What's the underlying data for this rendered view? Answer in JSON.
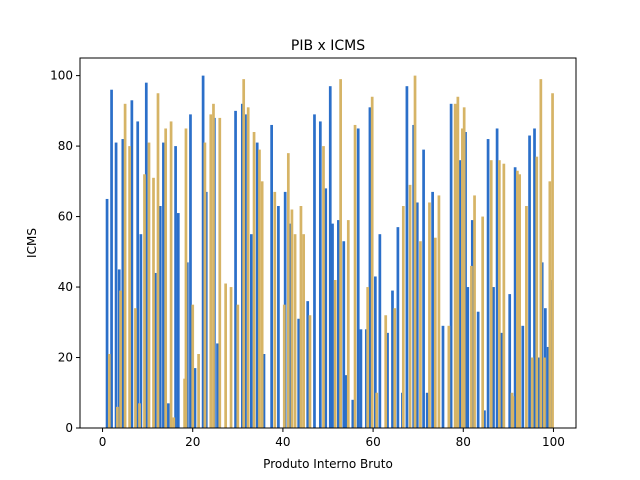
{
  "chart_data": {
    "type": "bar",
    "title": "PIB x ICMS",
    "xlabel": "Produto Interno Bruto",
    "ylabel": "ICMS",
    "xlim": [
      -5,
      105
    ],
    "ylim": [
      0,
      105
    ],
    "xticks": [
      0,
      20,
      40,
      60,
      80,
      100
    ],
    "yticks": [
      0,
      20,
      40,
      60,
      80,
      100
    ],
    "grid": false,
    "colors": {
      "blue": "#2b6fc9",
      "gold": "#d6b466"
    },
    "series": [
      {
        "color": "blue",
        "bar_width": 0.6,
        "points": [
          [
            1,
            65
          ],
          [
            2,
            96
          ],
          [
            3,
            81
          ],
          [
            3.7,
            45
          ],
          [
            4.5,
            82
          ],
          [
            6.5,
            93
          ],
          [
            7.8,
            87
          ],
          [
            8.5,
            55
          ],
          [
            9.7,
            98
          ],
          [
            11.7,
            44
          ],
          [
            12.8,
            63
          ],
          [
            13.5,
            81
          ],
          [
            14.6,
            7
          ],
          [
            16.2,
            80
          ],
          [
            16.8,
            61
          ],
          [
            18.8,
            47
          ],
          [
            19.5,
            89
          ],
          [
            20.5,
            17
          ],
          [
            22.3,
            100
          ],
          [
            23,
            67
          ],
          [
            24.8,
            88
          ],
          [
            25.5,
            24
          ],
          [
            29.5,
            90
          ],
          [
            31,
            92
          ],
          [
            31.7,
            89
          ],
          [
            33,
            55
          ],
          [
            34.3,
            81
          ],
          [
            35.8,
            21
          ],
          [
            37.5,
            86
          ],
          [
            39,
            63
          ],
          [
            40.5,
            67
          ],
          [
            41.5,
            58
          ],
          [
            43.5,
            31
          ],
          [
            45.5,
            36
          ],
          [
            47,
            89
          ],
          [
            48.3,
            87
          ],
          [
            49.5,
            68
          ],
          [
            50.5,
            97
          ],
          [
            51,
            58
          ],
          [
            52.3,
            59
          ],
          [
            53.5,
            53
          ],
          [
            54,
            15
          ],
          [
            55.5,
            8
          ],
          [
            56.7,
            85
          ],
          [
            57.3,
            28
          ],
          [
            58.5,
            28
          ],
          [
            59.3,
            91
          ],
          [
            60.5,
            43
          ],
          [
            61.5,
            55
          ],
          [
            63.2,
            27
          ],
          [
            64.3,
            39
          ],
          [
            65.5,
            57
          ],
          [
            66.5,
            10
          ],
          [
            67.5,
            97
          ],
          [
            69,
            86
          ],
          [
            69.8,
            64
          ],
          [
            71.2,
            79
          ],
          [
            72,
            10
          ],
          [
            73.2,
            67
          ],
          [
            75.5,
            29
          ],
          [
            77.3,
            92
          ],
          [
            78.5,
            44
          ],
          [
            79.3,
            76
          ],
          [
            80.5,
            84
          ],
          [
            81,
            40
          ],
          [
            82,
            59
          ],
          [
            83.3,
            33
          ],
          [
            84.7,
            5
          ],
          [
            85.5,
            82
          ],
          [
            86.7,
            40
          ],
          [
            87.5,
            85
          ],
          [
            88.5,
            27
          ],
          [
            90.3,
            38
          ],
          [
            91.5,
            74
          ],
          [
            93.2,
            29
          ],
          [
            94.7,
            83
          ],
          [
            95.8,
            85
          ],
          [
            96.6,
            20
          ],
          [
            97.5,
            47
          ],
          [
            98.2,
            34
          ],
          [
            98.8,
            23
          ],
          [
            99.5,
            42
          ]
        ]
      },
      {
        "color": "gold",
        "bar_width": 0.6,
        "points": [
          [
            1.5,
            21
          ],
          [
            3.3,
            6
          ],
          [
            4,
            39
          ],
          [
            5,
            92
          ],
          [
            6,
            80
          ],
          [
            7.3,
            34
          ],
          [
            8.2,
            7
          ],
          [
            9.3,
            72
          ],
          [
            10.3,
            81
          ],
          [
            11.3,
            71
          ],
          [
            12.3,
            95
          ],
          [
            14,
            85
          ],
          [
            15.2,
            87
          ],
          [
            15.8,
            3
          ],
          [
            18.2,
            14
          ],
          [
            18.5,
            85
          ],
          [
            20,
            35
          ],
          [
            21.3,
            21
          ],
          [
            22.7,
            81
          ],
          [
            24,
            89
          ],
          [
            24.6,
            92
          ],
          [
            26,
            88
          ],
          [
            27.3,
            41
          ],
          [
            28.5,
            40
          ],
          [
            30,
            35
          ],
          [
            31.3,
            99
          ],
          [
            32.3,
            91
          ],
          [
            33.6,
            84
          ],
          [
            34.8,
            79
          ],
          [
            35.4,
            70
          ],
          [
            38.2,
            67
          ],
          [
            40.3,
            35
          ],
          [
            41.2,
            78
          ],
          [
            42,
            62
          ],
          [
            42.7,
            55
          ],
          [
            44,
            63
          ],
          [
            44.6,
            55
          ],
          [
            46,
            32
          ],
          [
            49,
            80
          ],
          [
            51.6,
            42
          ],
          [
            52.8,
            99
          ],
          [
            54.5,
            59
          ],
          [
            56,
            86
          ],
          [
            58.8,
            40
          ],
          [
            59.8,
            94
          ],
          [
            60.8,
            10
          ],
          [
            62.8,
            32
          ],
          [
            64.8,
            34
          ],
          [
            66.7,
            63
          ],
          [
            68.2,
            69
          ],
          [
            69.3,
            100
          ],
          [
            70.5,
            53
          ],
          [
            72.5,
            64
          ],
          [
            73.8,
            54
          ],
          [
            74.6,
            66
          ],
          [
            76.8,
            29
          ],
          [
            78.2,
            92
          ],
          [
            78.8,
            94
          ],
          [
            79.8,
            85
          ],
          [
            80.2,
            91
          ],
          [
            81.8,
            46
          ],
          [
            82.5,
            66
          ],
          [
            84.3,
            60
          ],
          [
            86.2,
            76
          ],
          [
            88,
            76
          ],
          [
            89,
            75
          ],
          [
            90.8,
            10
          ],
          [
            91,
            9
          ],
          [
            92,
            73
          ],
          [
            92.5,
            72
          ],
          [
            94,
            63
          ],
          [
            95.3,
            20
          ],
          [
            96.3,
            77
          ],
          [
            97.2,
            99
          ],
          [
            98,
            20
          ],
          [
            99.2,
            70
          ],
          [
            99.8,
            95
          ]
        ]
      }
    ]
  }
}
